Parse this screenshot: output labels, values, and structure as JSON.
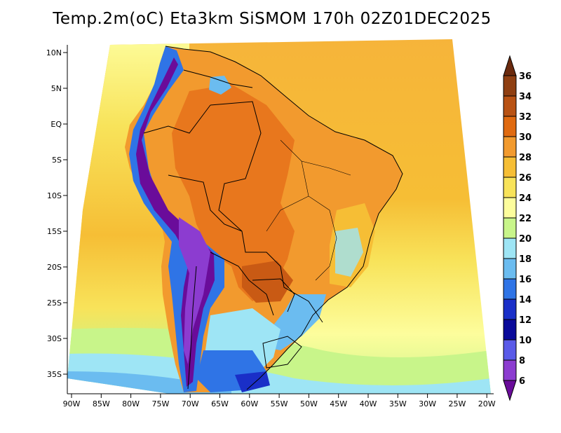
{
  "title": "Temp.2m(oC) Eta3km SiSMOM 170h 02Z01DEC2025",
  "latitude_labels": [
    "10N",
    "5N",
    "EQ",
    "5S",
    "10S",
    "15S",
    "20S",
    "25S",
    "30S",
    "35S"
  ],
  "longitude_labels": [
    "90W",
    "85W",
    "80W",
    "75W",
    "70W",
    "65W",
    "60W",
    "55W",
    "50W",
    "45W",
    "40W",
    "35W",
    "30W",
    "25W",
    "20W"
  ],
  "colorbar": {
    "labels": [
      "36",
      "34",
      "32",
      "30",
      "28",
      "26",
      "24",
      "22",
      "20",
      "18",
      "16",
      "14",
      "12",
      "10",
      "8",
      "6"
    ],
    "colors": [
      "#6b2a0e",
      "#8f3f12",
      "#b85214",
      "#e06a10",
      "#f29a2e",
      "#f6be35",
      "#f8e35a",
      "#fdfd9c",
      "#c8f58a",
      "#9ee5f5",
      "#6bbcf0",
      "#2f74e6",
      "#1a2fc8",
      "#0a0a9a",
      "#5a5ae8",
      "#8c3cd0",
      "#6a0c9a"
    ]
  },
  "legend_colors": {
    "ocean_warm": "#f6b43a",
    "ocean_mild": "#f8e35a",
    "ocean_cool": "#fdfd9c",
    "ocean_cooler": "#c8f58a",
    "ocean_cold": "#9ee5f5",
    "land_hot": "#e6711a",
    "land_warm": "#f29a2e",
    "andes_cold": "#2f74e6",
    "andes_colder": "#6a0c9a"
  }
}
